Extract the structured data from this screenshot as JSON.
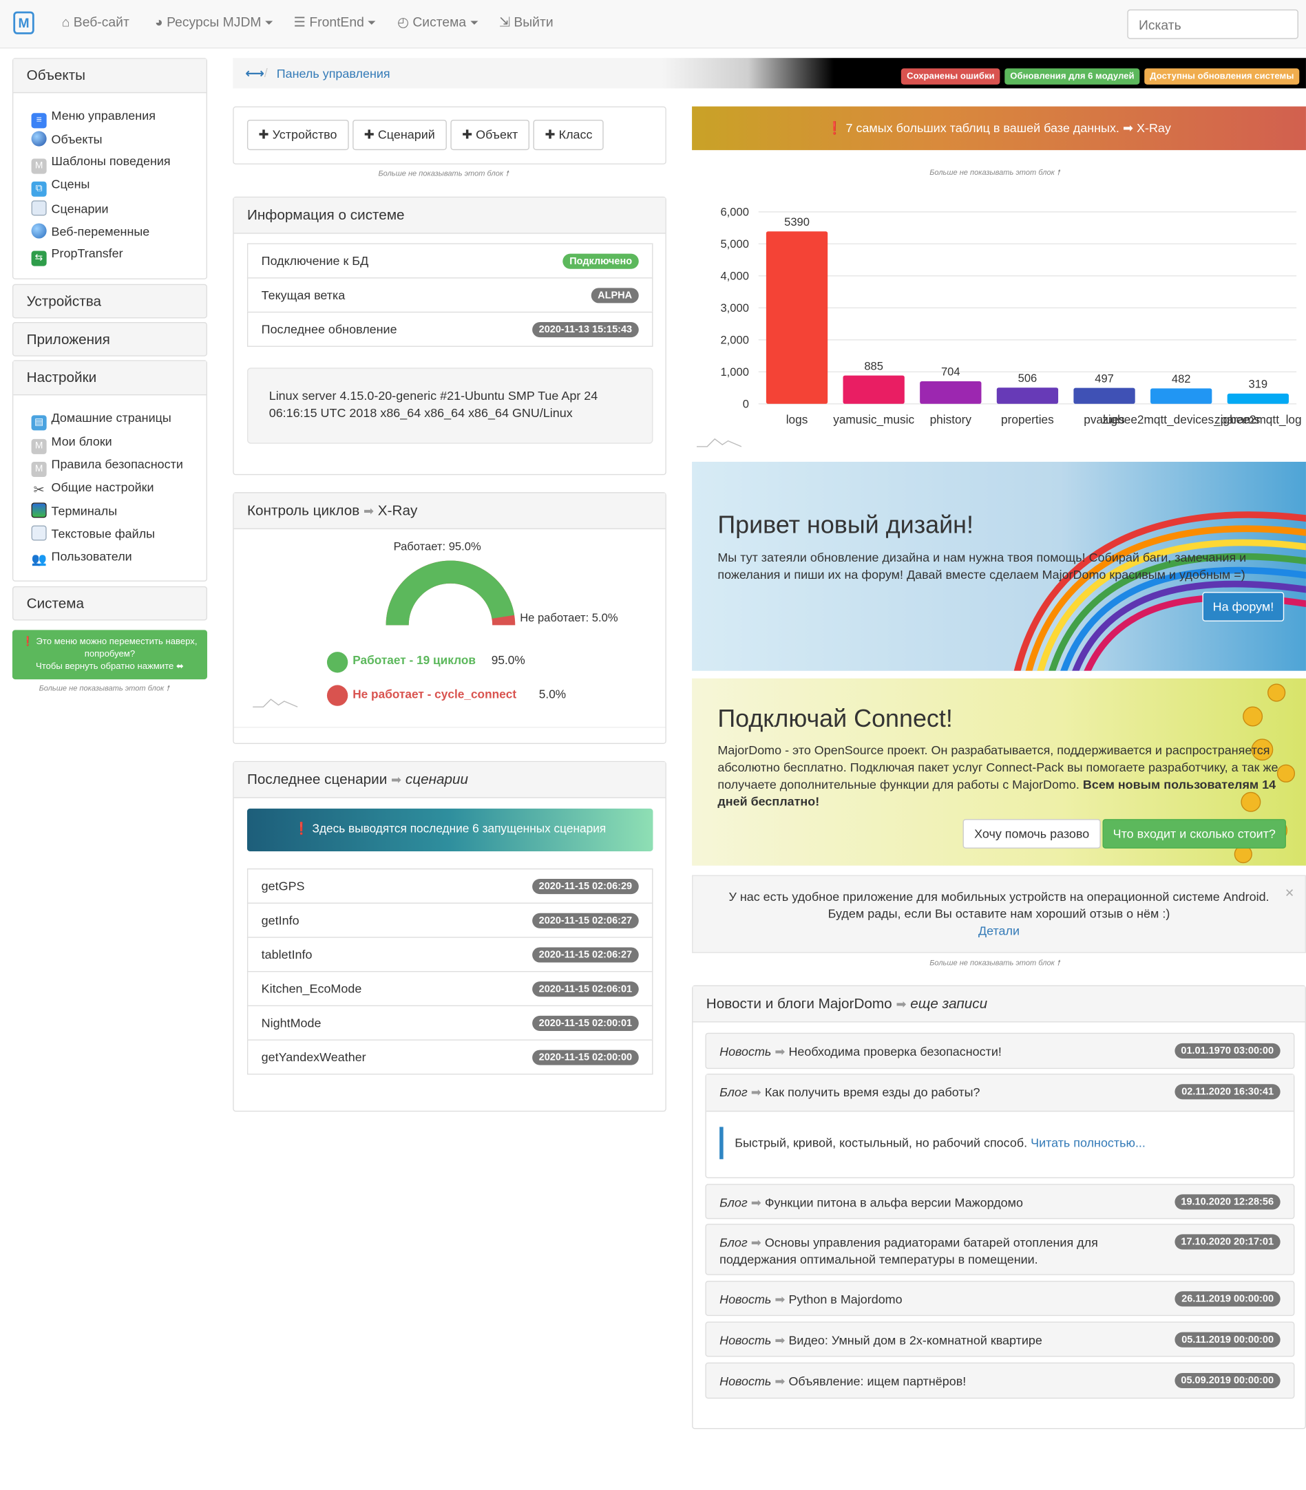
{
  "navbar": {
    "logo": "M",
    "items": [
      {
        "label": "Веб-сайт",
        "icon": "home-icon",
        "has_caret": false
      },
      {
        "label": "Ресурсы MJDM",
        "icon": "globe-icon",
        "has_caret": true
      },
      {
        "label": "FrontEnd",
        "icon": "list-icon",
        "has_caret": true
      },
      {
        "label": "Система",
        "icon": "clock-icon",
        "has_caret": true
      },
      {
        "label": "Выйти",
        "icon": "logout-icon",
        "has_caret": false
      }
    ],
    "search_placeholder": "Искать"
  },
  "sidebar": {
    "objects_title": "Объекты",
    "objects_items": [
      "Меню управления",
      "Объекты",
      "Шаблоны поведения",
      "Сцены",
      "Сценарии",
      "Веб-переменные",
      "PropTransfer"
    ],
    "devices_title": "Устройства",
    "apps_title": "Приложения",
    "settings_title": "Настройки",
    "settings_items": [
      "Домашние страницы",
      "Мои блоки",
      "Правила безопасности",
      "Общие настройки",
      "Терминалы",
      "Текстовые файлы",
      "Пользователи"
    ],
    "system_title": "Система",
    "move_alert_line1": "Это меню можно переместить наверх, попробуем?",
    "move_alert_line2": "Чтобы вернуть обратно нажмите",
    "hide_note": "Больше не показывать этот блок"
  },
  "breadcrumb": {
    "current": "Панель управления",
    "labels": [
      {
        "text": "Сохранены ошибки",
        "color": "#d9534f"
      },
      {
        "text": "Обновления для 6 модулей",
        "color": "#5cb85c"
      },
      {
        "text": "Доступны обновления системы",
        "color": "#f0ad4e"
      }
    ]
  },
  "quick_add": {
    "buttons": [
      "Устройство",
      "Сценарий",
      "Объект",
      "Класс"
    ],
    "hide_note": "Больше не показывать этот блок"
  },
  "system_info": {
    "title": "Информация о системе",
    "rows": [
      {
        "label": "Подключение к БД",
        "value": "Подключено",
        "color": "#5cb85c"
      },
      {
        "label": "Текущая ветка",
        "value": "ALPHA",
        "color": "#777"
      },
      {
        "label": "Последнее обновление",
        "value": "2020-11-13 15:15:43",
        "color": "#777"
      }
    ],
    "uname": "Linux server 4.15.0-20-generic #21-Ubuntu SMP Tue Apr 24 06:16:15 UTC 2018 x86_64 x86_64 x86_64 GNU/Linux"
  },
  "cycles": {
    "title": "Контроль циклов",
    "link": "X-Ray",
    "gauge_top": "Работает: 95.0%",
    "gauge_right": "Не работает: 5.0%",
    "working_fraction": 0.95,
    "legend": [
      {
        "label": "Работает - 19 циклов",
        "value": "95.0%",
        "color": "#5cb85c"
      },
      {
        "label": "Не работает - cycle_connect",
        "value": "5.0%",
        "color": "#d9534f"
      }
    ]
  },
  "scenarios": {
    "title": "Последнее сценарии",
    "link": "сценарии",
    "info": "Здесь выводятся последние 6 запущенных сценария",
    "rows": [
      {
        "name": "getGPS",
        "time": "2020-11-15 02:06:29"
      },
      {
        "name": "getInfo",
        "time": "2020-11-15 02:06:27"
      },
      {
        "name": "tabletInfo",
        "time": "2020-11-15 02:06:27"
      },
      {
        "name": "Kitchen_EcoMode",
        "time": "2020-11-15 02:06:01"
      },
      {
        "name": "NightMode",
        "time": "2020-11-15 02:00:01"
      },
      {
        "name": "getYandexWeather",
        "time": "2020-11-15 02:00:00"
      }
    ]
  },
  "xray_banner": {
    "text": "7 самых больших таблиц в вашей базе данных.",
    "link": "X-Ray",
    "hide_note": "Больше не показывать этот блок"
  },
  "chart_data": {
    "type": "bar",
    "title": "",
    "categories": [
      "logs",
      "yamusic_music",
      "phistory",
      "properties",
      "pvalues",
      "zigbee2mqtt_devices_params",
      "zigbee2mqtt_log"
    ],
    "values": [
      5390,
      885,
      704,
      506,
      497,
      482,
      319
    ],
    "colors": [
      "#f44336",
      "#e91e63",
      "#9c27b0",
      "#673ab7",
      "#3f51b5",
      "#2196f3",
      "#03a9f4"
    ],
    "ylim": [
      0,
      6000
    ],
    "yticks": [
      "0",
      "1,000",
      "2,000",
      "3,000",
      "4,000",
      "5,000",
      "6,000"
    ],
    "grid": true,
    "xlabel": "",
    "ylabel": ""
  },
  "new_design": {
    "title": "Привет новый дизайн!",
    "text": "Мы тут затеяли обновление дизайна и нам нужна твоя помощь! Собирай баги, замечания и пожелания и пиши их на форум! Давай вместе сделаем MajorDomo красивым и удобным =)",
    "button": "На форум!"
  },
  "connect": {
    "title": "Подключай Connect!",
    "text_lead": "MajorDomo",
    "text_body": " - это OpenSource проект. Он разрабатывается, поддерживается и распространяется абсолютно бесплатно. Подключая пакет услуг Connect-Pack вы помогаете разработчику, а так же получаете дополнительные функции для работы с MajorDomo. ",
    "text_bold": "Всем новым пользователям 14 дней бесплатно!",
    "button_once": "Хочу помочь разово",
    "button_info": "Что входит и сколько стоит?"
  },
  "android": {
    "line1": "У нас есть удобное приложение для мобильных устройств на операционной системе Android.",
    "line2": "Будем рады, если Вы оставите нам хороший отзыв о нём :)",
    "link": "Детали",
    "close": "×",
    "hide_note": "Больше не показывать этот блок"
  },
  "news": {
    "title": "Новости и блоги MajorDomo",
    "link": "еще записи",
    "items": [
      {
        "type": "Новость",
        "title": "Необходима проверка безопасности!",
        "date": "01.01.1970 03:00:00"
      },
      {
        "type": "Блог",
        "title": "Как получить время езды до работы?",
        "date": "02.11.2020 16:30:41",
        "quote": "Быстрый, кривой, костыльный, но рабочий способ.",
        "read_more": "Читать полностью..."
      },
      {
        "type": "Блог",
        "title": "Функции питона в альфа версии Мажордомо",
        "date": "19.10.2020 12:28:56"
      },
      {
        "type": "Блог",
        "title": "Основы управления радиаторами батарей отопления для поддержания оптимальной температуры в помещении.",
        "date": "17.10.2020 20:17:01"
      },
      {
        "type": "Новость",
        "title": "Python в Majordomo",
        "date": "26.11.2019 00:00:00"
      },
      {
        "type": "Новость",
        "title": "Видео: Умный дом в 2х-комнатной квартире",
        "date": "05.11.2019 00:00:00"
      },
      {
        "type": "Новость",
        "title": "Объявление: ищем партнёров!",
        "date": "05.09.2019 00:00:00"
      }
    ]
  }
}
